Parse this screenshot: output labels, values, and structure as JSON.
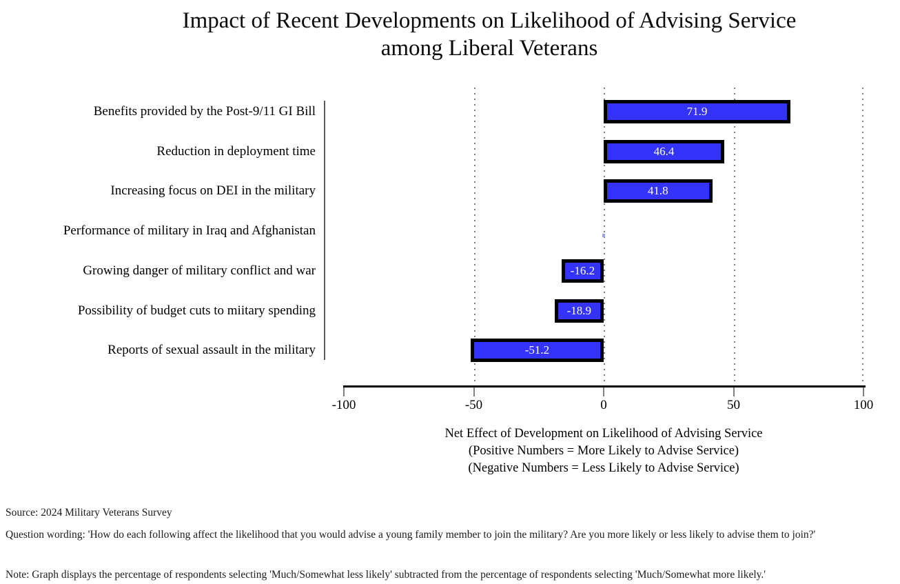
{
  "title_lines": [
    "Impact of Recent Developments on Likelihood of Advising Service",
    "among Liberal Veterans"
  ],
  "chart_data": {
    "type": "bar",
    "orientation": "horizontal",
    "title": "Impact of Recent Developments on Likelihood of Advising Service among Liberal Veterans",
    "categories": [
      "Benefits provided by the Post-9/11 GI Bill",
      "Reduction in deployment time",
      "Increasing focus on DEI in the military",
      "Performance of military in Iraq and Afghanistan",
      "Growing danger of military conflict and war",
      "Possibility of budget cuts to miitary spending",
      "Reports of sexual assault in the military"
    ],
    "values": [
      71.9,
      46.4,
      41.8,
      0,
      -16.2,
      -18.9,
      -51.2
    ],
    "bar_labels": [
      "71.9",
      "46.4",
      "41.8",
      "",
      "-16.2",
      "-18.9",
      "-51.2"
    ],
    "xlim": [
      -100,
      100
    ],
    "x_ticks": [
      -100,
      -50,
      0,
      50,
      100
    ],
    "gridlines_at": [
      -50,
      0,
      50,
      100
    ],
    "xlabel_lines": [
      "Net Effect of Development on Likelihood of Advising Service",
      "(Positive Numbers = More Likely to Advise Service)",
      "(Negative Numbers = Less Likely to Advise Service)"
    ],
    "grid_on": true,
    "legend": null,
    "bar_color": "#3333FA",
    "bar_border_color": "#000000",
    "bar_value_text_color": "#ffffff",
    "grid_color": "#7d7d7d",
    "zero_marker_color": "#97a4e2"
  },
  "footer": {
    "source": "Source: 2024 Military Veterans Survey",
    "question": "Question wording: 'How do each following affect the likelihood that you would advise a young family member to join the military? Are you more likely or less likely to advise them to join?'",
    "note": "Note: Graph displays the percentage of respondents selecting 'Much/Somewhat less likely' subtracted from the percentage of respondents selecting 'Much/Somewhat more likely.'"
  }
}
